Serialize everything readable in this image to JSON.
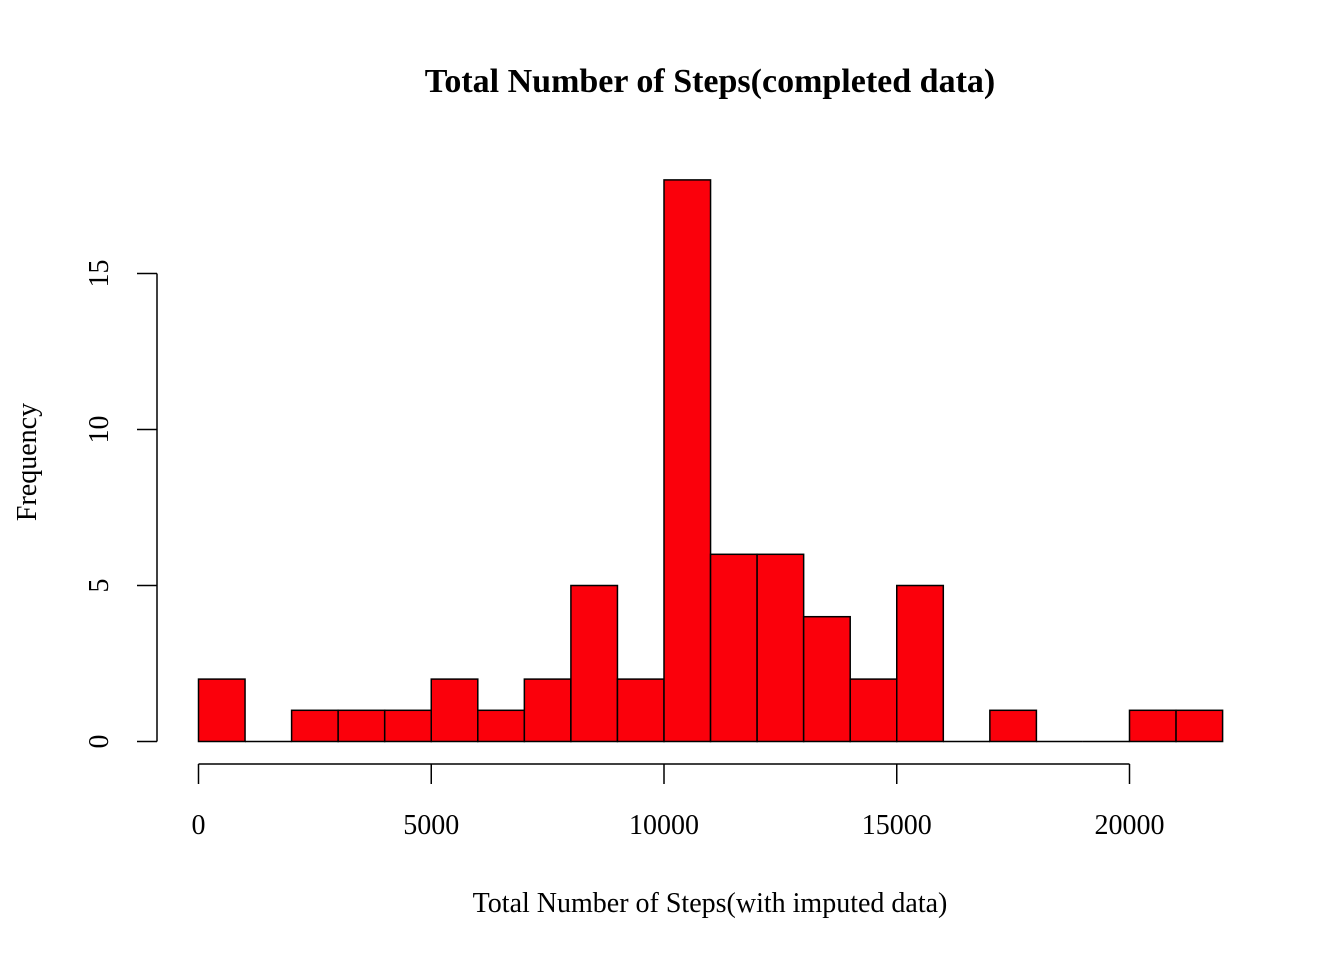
{
  "chart_data": {
    "type": "bar",
    "title": "Total Number of Steps(completed data)",
    "xlabel": "Total Number of Steps(with imputed data)",
    "ylabel": "Frequency",
    "bin_width": 1000,
    "bins": [
      {
        "start": 0,
        "end": 1000,
        "count": 2
      },
      {
        "start": 1000,
        "end": 2000,
        "count": 0
      },
      {
        "start": 2000,
        "end": 3000,
        "count": 1
      },
      {
        "start": 3000,
        "end": 4000,
        "count": 1
      },
      {
        "start": 4000,
        "end": 5000,
        "count": 1
      },
      {
        "start": 5000,
        "end": 6000,
        "count": 2
      },
      {
        "start": 6000,
        "end": 7000,
        "count": 1
      },
      {
        "start": 7000,
        "end": 8000,
        "count": 2
      },
      {
        "start": 8000,
        "end": 9000,
        "count": 5
      },
      {
        "start": 9000,
        "end": 10000,
        "count": 2
      },
      {
        "start": 10000,
        "end": 11000,
        "count": 18
      },
      {
        "start": 11000,
        "end": 12000,
        "count": 6
      },
      {
        "start": 12000,
        "end": 13000,
        "count": 6
      },
      {
        "start": 13000,
        "end": 14000,
        "count": 4
      },
      {
        "start": 14000,
        "end": 15000,
        "count": 2
      },
      {
        "start": 15000,
        "end": 16000,
        "count": 5
      },
      {
        "start": 16000,
        "end": 17000,
        "count": 0
      },
      {
        "start": 17000,
        "end": 18000,
        "count": 1
      },
      {
        "start": 18000,
        "end": 19000,
        "count": 0
      },
      {
        "start": 19000,
        "end": 20000,
        "count": 0
      },
      {
        "start": 20000,
        "end": 21000,
        "count": 1
      },
      {
        "start": 21000,
        "end": 22000,
        "count": 1
      }
    ],
    "x_ticks": [
      0,
      5000,
      10000,
      15000,
      20000
    ],
    "y_ticks": [
      0,
      5,
      10,
      15
    ],
    "xlim": [
      0,
      22000
    ],
    "ylim": [
      0,
      18
    ],
    "bar_color": "#FB000B",
    "grid": false,
    "legend": "none"
  }
}
